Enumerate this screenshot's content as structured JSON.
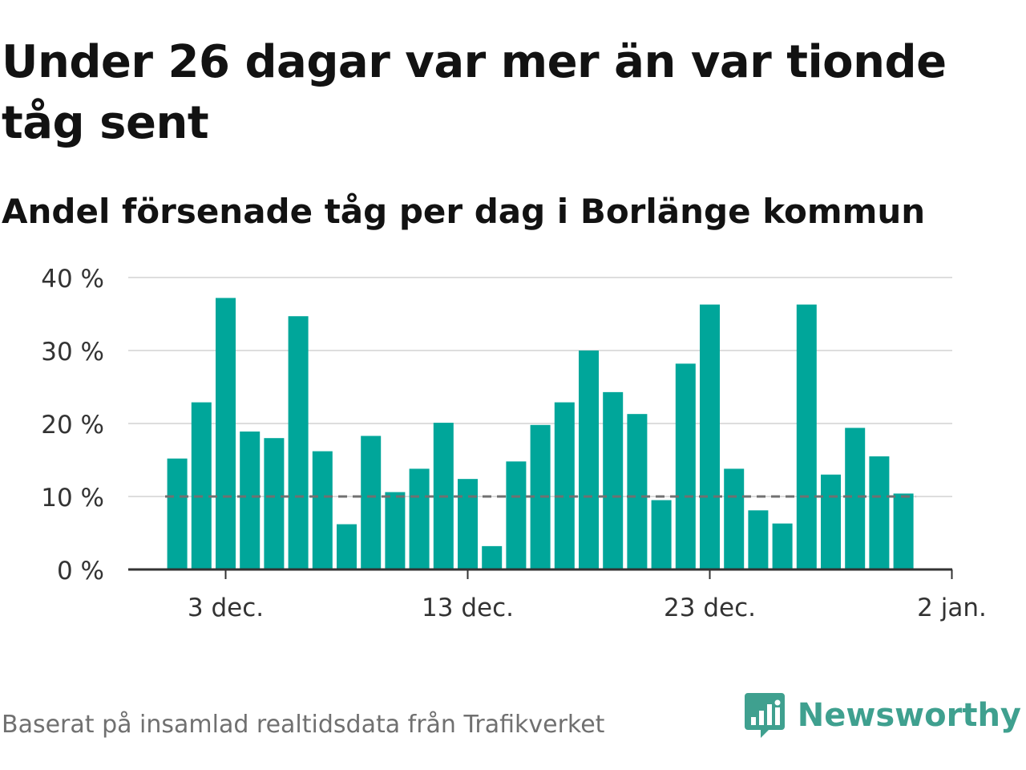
{
  "header": {
    "title": "Under 26 dagar var mer än var tionde tåg sent",
    "subtitle": "Andel försenade tåg per dag i Borlänge kommun"
  },
  "footer": {
    "source": "Baserat på insamlad realtidsdata från Trafikverket",
    "brand": "Newsworthy"
  },
  "chart_data": {
    "type": "bar",
    "x": [
      "2023-12-01",
      "2023-12-02",
      "2023-12-03",
      "2023-12-04",
      "2023-12-05",
      "2023-12-06",
      "2023-12-07",
      "2023-12-08",
      "2023-12-09",
      "2023-12-10",
      "2023-12-11",
      "2023-12-12",
      "2023-12-13",
      "2023-12-14",
      "2023-12-15",
      "2023-12-16",
      "2023-12-17",
      "2023-12-18",
      "2023-12-19",
      "2023-12-20",
      "2023-12-21",
      "2023-12-22",
      "2023-12-23",
      "2023-12-24",
      "2023-12-25",
      "2023-12-26",
      "2023-12-27",
      "2023-12-28",
      "2023-12-29",
      "2023-12-30",
      "2023-12-31"
    ],
    "values": [
      15.2,
      22.9,
      37.2,
      18.9,
      18.0,
      34.7,
      16.2,
      6.2,
      18.3,
      10.6,
      13.8,
      20.1,
      12.4,
      3.2,
      14.8,
      19.8,
      22.9,
      30.0,
      24.3,
      21.3,
      9.5,
      28.2,
      36.3,
      13.8,
      8.1,
      6.3,
      36.3,
      13.0,
      19.4,
      15.5,
      10.4
    ],
    "y_ticks": [
      "0 %",
      "10 %",
      "20 %",
      "30 %",
      "40 %"
    ],
    "ylim": [
      0,
      40
    ],
    "x_ticks": [
      {
        "index": 2,
        "label": "3 dec."
      },
      {
        "index": 12,
        "label": "13 dec."
      },
      {
        "index": 22,
        "label": "23 dec."
      },
      {
        "index": 32,
        "label": "2 jan."
      }
    ],
    "reference_line": 10,
    "grid": true,
    "legend": false,
    "colors": {
      "bar": "#00a69a",
      "grid": "#dddddd",
      "axis": "#333333",
      "reference": "#707070",
      "text": "#333333"
    }
  }
}
